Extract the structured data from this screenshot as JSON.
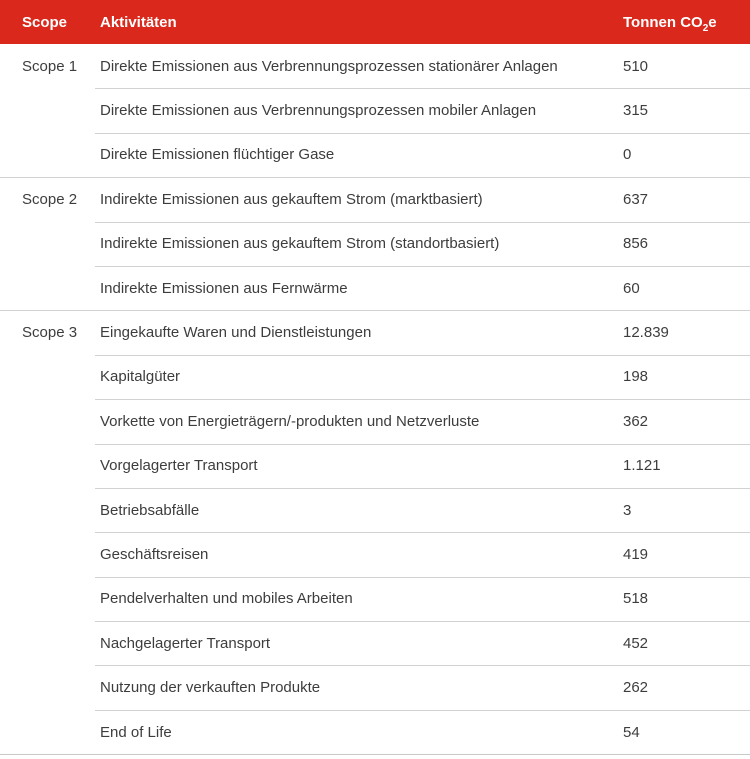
{
  "colors": {
    "header_bg": "#da291c",
    "header_text": "#ffffff",
    "body_text": "#3d3d3d",
    "divider": "#d2d2d2"
  },
  "table": {
    "header": {
      "scope": "Scope",
      "activity": "Aktivitäten",
      "tonnes_prefix": "Tonnen CO",
      "tonnes_sub": "2",
      "tonnes_suffix": "e"
    },
    "rows": [
      {
        "scope": "Scope 1",
        "activity": "Direkte Emissionen aus Verbrennungsprozessen stationärer Anlagen",
        "tonnes": "510",
        "group_start": true
      },
      {
        "scope": "",
        "activity": "Direkte Emissionen aus Verbrennungsprozessen mobiler Anlagen",
        "tonnes": "315",
        "group_start": false
      },
      {
        "scope": "",
        "activity": "Direkte Emissionen flüchtiger Gase",
        "tonnes": "0",
        "group_start": false
      },
      {
        "scope": "Scope 2",
        "activity": "Indirekte Emissionen aus gekauftem Strom (marktbasiert)",
        "tonnes": "637",
        "group_start": true
      },
      {
        "scope": "",
        "activity": "Indirekte Emissionen aus gekauftem Strom (standortbasiert)",
        "tonnes": "856",
        "group_start": false
      },
      {
        "scope": "",
        "activity": "Indirekte Emissionen aus Fernwärme",
        "tonnes": "60",
        "group_start": false
      },
      {
        "scope": "Scope 3",
        "activity": "Eingekaufte Waren und Dienstleistungen",
        "tonnes": "12.839",
        "group_start": true
      },
      {
        "scope": "",
        "activity": "Kapitalgüter",
        "tonnes": "198",
        "group_start": false
      },
      {
        "scope": "",
        "activity": "Vorkette von Energieträgern/-produkten und Netzverluste",
        "tonnes": "362",
        "group_start": false
      },
      {
        "scope": "",
        "activity": "Vorgelagerter Transport",
        "tonnes": "1.121",
        "group_start": false
      },
      {
        "scope": "",
        "activity": "Betriebsabfälle",
        "tonnes": "3",
        "group_start": false
      },
      {
        "scope": "",
        "activity": "Geschäftsreisen",
        "tonnes": "419",
        "group_start": false
      },
      {
        "scope": "",
        "activity": "Pendelverhalten und mobiles Arbeiten",
        "tonnes": "518",
        "group_start": false
      },
      {
        "scope": "",
        "activity": "Nachgelagerter Transport",
        "tonnes": "452",
        "group_start": false
      },
      {
        "scope": "",
        "activity": "Nutzung der verkauften Produkte",
        "tonnes": "262",
        "group_start": false
      },
      {
        "scope": "",
        "activity": "End of Life",
        "tonnes": "54",
        "group_start": false
      }
    ]
  },
  "chart_data": {
    "type": "table",
    "title": "",
    "columns": [
      "Scope",
      "Aktivitäten",
      "Tonnen CO2e"
    ],
    "rows": [
      [
        "Scope 1",
        "Direkte Emissionen aus Verbrennungsprozessen stationärer Anlagen",
        510
      ],
      [
        "Scope 1",
        "Direkte Emissionen aus Verbrennungsprozessen mobiler Anlagen",
        315
      ],
      [
        "Scope 1",
        "Direkte Emissionen flüchtiger Gase",
        0
      ],
      [
        "Scope 2",
        "Indirekte Emissionen aus gekauftem Strom (marktbasiert)",
        637
      ],
      [
        "Scope 2",
        "Indirekte Emissionen aus gekauftem Strom (standortbasiert)",
        856
      ],
      [
        "Scope 2",
        "Indirekte Emissionen aus Fernwärme",
        60
      ],
      [
        "Scope 3",
        "Eingekaufte Waren und Dienstleistungen",
        12839
      ],
      [
        "Scope 3",
        "Kapitalgüter",
        198
      ],
      [
        "Scope 3",
        "Vorkette von Energieträgern/-produkten und Netzverluste",
        362
      ],
      [
        "Scope 3",
        "Vorgelagerter Transport",
        1121
      ],
      [
        "Scope 3",
        "Betriebsabfälle",
        3
      ],
      [
        "Scope 3",
        "Geschäftsreisen",
        419
      ],
      [
        "Scope 3",
        "Pendelverhalten und mobiles Arbeiten",
        518
      ],
      [
        "Scope 3",
        "Nachgelagerter Transport",
        452
      ],
      [
        "Scope 3",
        "Nutzung der verkauften Produkte",
        262
      ],
      [
        "Scope 3",
        "End of Life",
        54
      ]
    ],
    "notes": "Number formatting uses German thousands separator (.)"
  }
}
